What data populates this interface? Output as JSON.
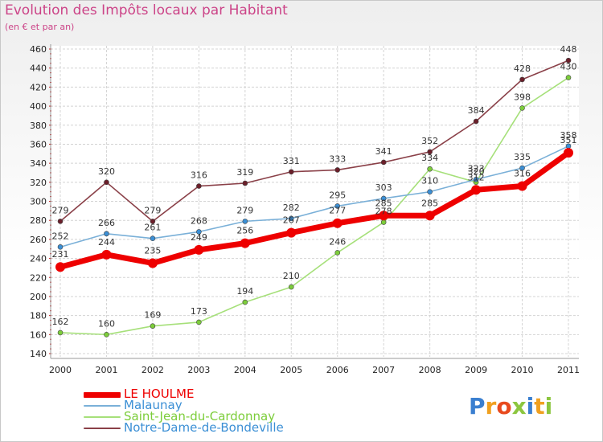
{
  "header": {
    "title": "Evolution des Impôts locaux par Habitant",
    "subtitle": "(en € et par an)"
  },
  "logo": {
    "text": "Proxiti",
    "letters": [
      {
        "ch": "P",
        "color": "#3a7fd0"
      },
      {
        "ch": "r",
        "color": "#f0a020"
      },
      {
        "ch": "o",
        "color": "#e84a1e"
      },
      {
        "ch": "x",
        "color": "#8cc63f"
      },
      {
        "ch": "i",
        "color": "#3a7fd0"
      },
      {
        "ch": "t",
        "color": "#f0a020"
      },
      {
        "ch": "i",
        "color": "#8cc63f"
      }
    ]
  },
  "chart_data": {
    "type": "line",
    "title": "Evolution des Impôts locaux par Habitant",
    "subtitle": "(en € et par an)",
    "x": [
      2000,
      2001,
      2002,
      2003,
      2004,
      2005,
      2006,
      2007,
      2008,
      2009,
      2010,
      2011
    ],
    "ylim": [
      140,
      460
    ],
    "yticks": [
      140,
      160,
      180,
      200,
      220,
      240,
      260,
      280,
      300,
      320,
      340,
      360,
      380,
      400,
      420,
      440,
      460
    ],
    "grid": true,
    "legend_position": "bottom-left",
    "series": [
      {
        "name": "LE HOULME",
        "color": "#ee0000",
        "line_color": "#ee0000",
        "values": [
          231,
          244,
          235,
          249,
          256,
          267,
          277,
          285,
          285,
          312,
          316,
          351
        ],
        "labels": [
          "231",
          "244",
          "235",
          "249",
          "256",
          "267",
          "277",
          "285",
          "285",
          "312",
          "316",
          "351"
        ]
      },
      {
        "name": "Malaunay",
        "color": "#3b8fd5",
        "line_color": "#7ab0d8",
        "values": [
          252,
          266,
          261,
          268,
          279,
          282,
          295,
          303,
          310,
          323,
          335,
          358
        ],
        "labels": [
          "252",
          "266",
          "261",
          "268",
          "279",
          "282",
          "295",
          "303",
          "310",
          "323",
          "335",
          "358"
        ]
      },
      {
        "name": "Saint-Jean-du-Cardonnay",
        "color": "#7ccd3a",
        "line_color": "#a6e07a",
        "values": [
          162,
          160,
          169,
          173,
          194,
          210,
          246,
          278,
          334,
          320,
          398,
          430
        ],
        "labels": [
          "162",
          "160",
          "169",
          "173",
          "194",
          "210",
          "246",
          "278",
          "334",
          "320",
          "398",
          "430"
        ]
      },
      {
        "name": "Notre-Dame-de-Bondeville",
        "color": "#6b1f2a",
        "line_color": "#8a4048",
        "values": [
          279,
          320,
          279,
          316,
          319,
          331,
          333,
          341,
          352,
          384,
          428,
          448
        ],
        "labels": [
          "279",
          "320",
          "279",
          "316",
          "319",
          "331",
          "333",
          "341",
          "352",
          "384",
          "428",
          "448"
        ]
      }
    ]
  }
}
